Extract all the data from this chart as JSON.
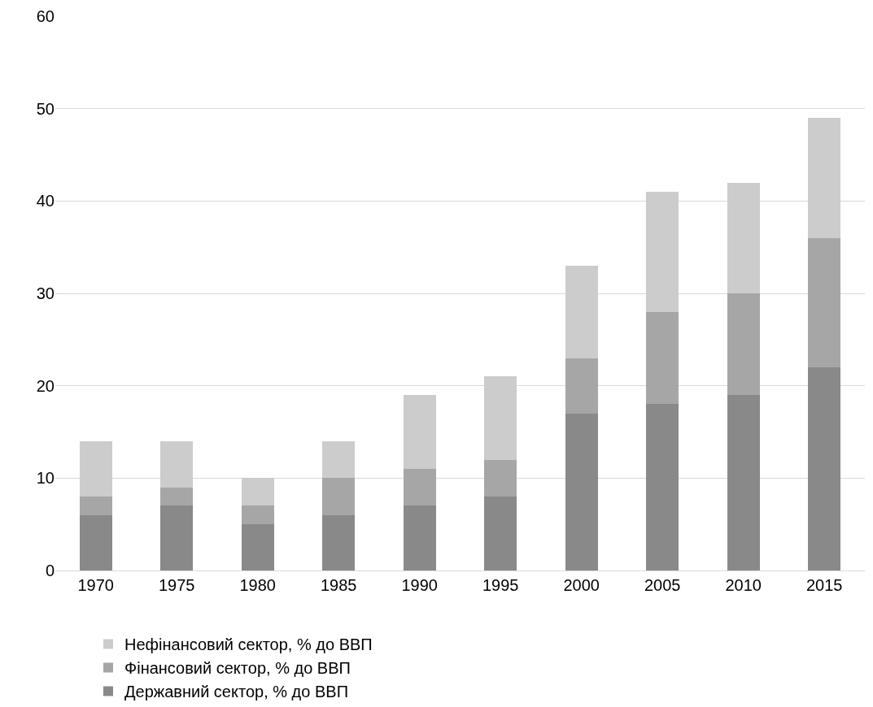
{
  "chart_data": {
    "type": "bar",
    "stacked": true,
    "categories": [
      "1970",
      "1975",
      "1980",
      "1985",
      "1990",
      "1995",
      "2000",
      "2005",
      "2010",
      "2015"
    ],
    "series": [
      {
        "name": "Державний сектор, % до ВВП",
        "color": "#898989",
        "values": [
          6,
          7,
          5,
          6,
          7,
          8,
          17,
          18,
          19,
          22
        ]
      },
      {
        "name": "Фінансовий сектор, % до ВВП",
        "color": "#a6a6a6",
        "values": [
          2,
          2,
          2,
          4,
          4,
          4,
          6,
          10,
          11,
          14
        ]
      },
      {
        "name": "Нефінансовий сектор, % до ВВП",
        "color": "#cccccc",
        "values": [
          6,
          5,
          3,
          4,
          8,
          9,
          10,
          13,
          12,
          13
        ]
      }
    ],
    "ylim": [
      0,
      60
    ],
    "yticks": [
      0,
      10,
      20,
      30,
      40,
      50,
      60
    ],
    "grid": "y",
    "legend": "bottom"
  }
}
